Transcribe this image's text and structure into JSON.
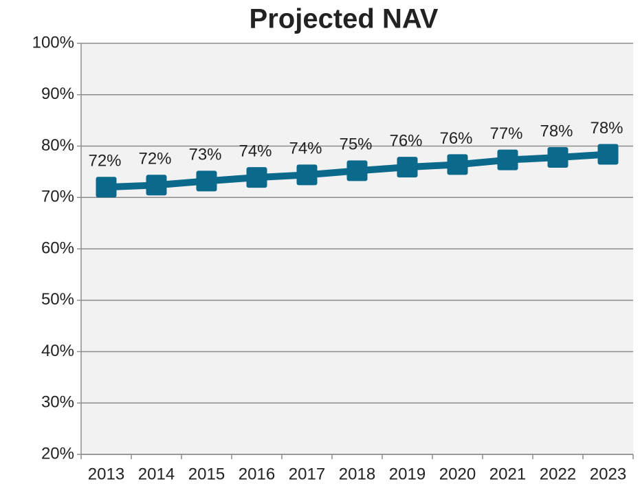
{
  "chart_data": {
    "type": "line",
    "title": "Projected NAV",
    "categories": [
      "2013",
      "2014",
      "2015",
      "2016",
      "2017",
      "2018",
      "2019",
      "2020",
      "2021",
      "2022",
      "2023"
    ],
    "series": [
      {
        "name": "Projected NAV",
        "color": "#0b6a8c",
        "values": [
          72.0,
          72.4,
          73.2,
          73.9,
          74.4,
          75.2,
          75.9,
          76.4,
          77.3,
          77.8,
          78.4
        ],
        "value_labels": [
          "72%",
          "72%",
          "73%",
          "74%",
          "74%",
          "75%",
          "76%",
          "76%",
          "77%",
          "78%",
          "78%"
        ]
      }
    ],
    "ylim": [
      20,
      100
    ],
    "yticks": [
      {
        "value": 20,
        "label": "20%"
      },
      {
        "value": 30,
        "label": "30%"
      },
      {
        "value": 40,
        "label": "40%"
      },
      {
        "value": 50,
        "label": "50%"
      },
      {
        "value": 60,
        "label": "60%"
      },
      {
        "value": 70,
        "label": "70%"
      },
      {
        "value": 80,
        "label": "80%"
      },
      {
        "value": 90,
        "label": "90%"
      },
      {
        "value": 100,
        "label": "100%"
      }
    ],
    "grid": true
  }
}
